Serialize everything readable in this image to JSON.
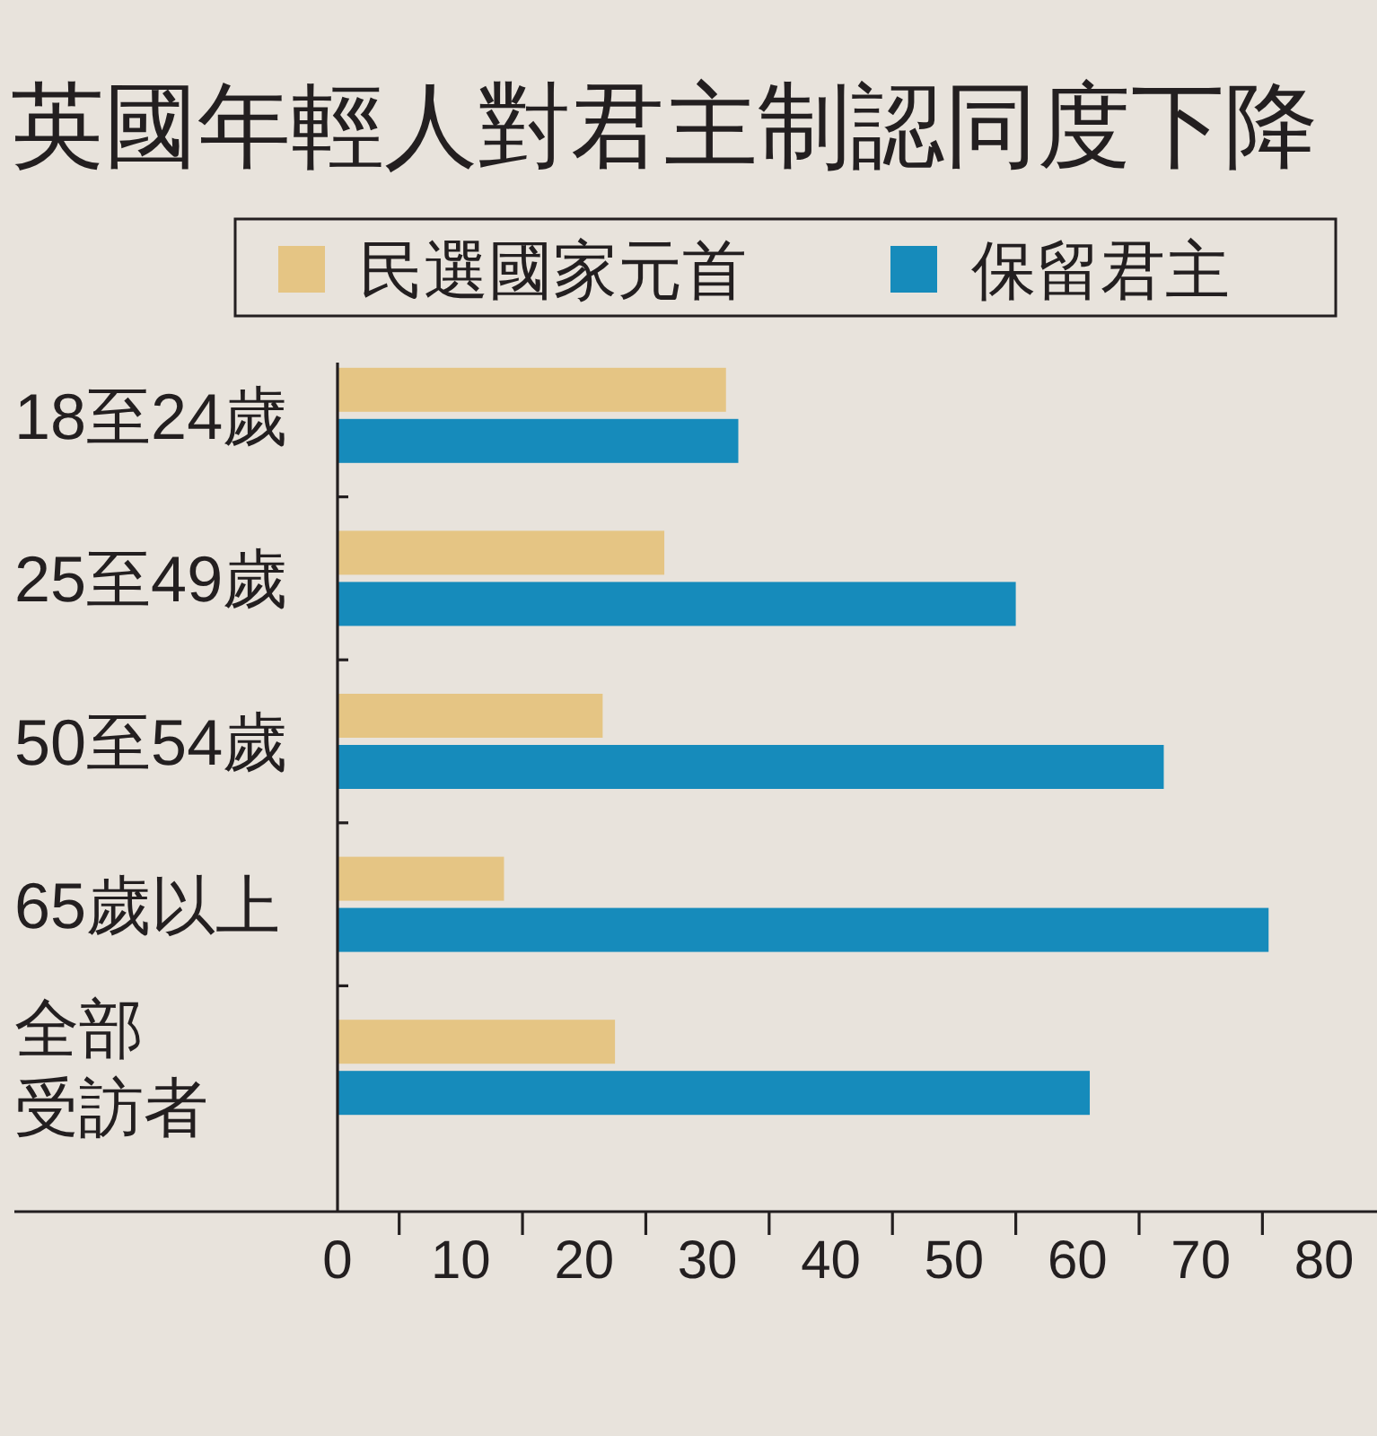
{
  "chart_data": {
    "type": "bar",
    "orientation": "horizontal",
    "title": "英國年輕人對君主制認同度下降",
    "categories": [
      "18至24歲",
      "25至49歲",
      "50至54歲",
      "65歲以上",
      "全部受訪者"
    ],
    "series": [
      {
        "name": "民選國家元首",
        "color": "#e5c584",
        "values": [
          31.5,
          26.5,
          21.5,
          13.5,
          22.5
        ]
      },
      {
        "name": "保留君主",
        "color": "#168bbb",
        "values": [
          32.5,
          55,
          67,
          75.5,
          61
        ]
      }
    ],
    "xlim": [
      0,
      84
    ],
    "xticks": [
      0,
      {
        "value": 5,
        "label": null
      },
      10,
      {
        "value": 15,
        "label": null
      },
      20,
      {
        "value": 25,
        "label": null
      },
      30,
      {
        "value": 35,
        "label": null
      },
      40,
      {
        "value": 45,
        "label": null
      },
      50,
      {
        "value": 55,
        "label": null
      },
      60,
      {
        "value": 65,
        "label": null
      },
      70,
      {
        "value": 75,
        "label": null
      },
      80
    ],
    "legend": "top"
  }
}
